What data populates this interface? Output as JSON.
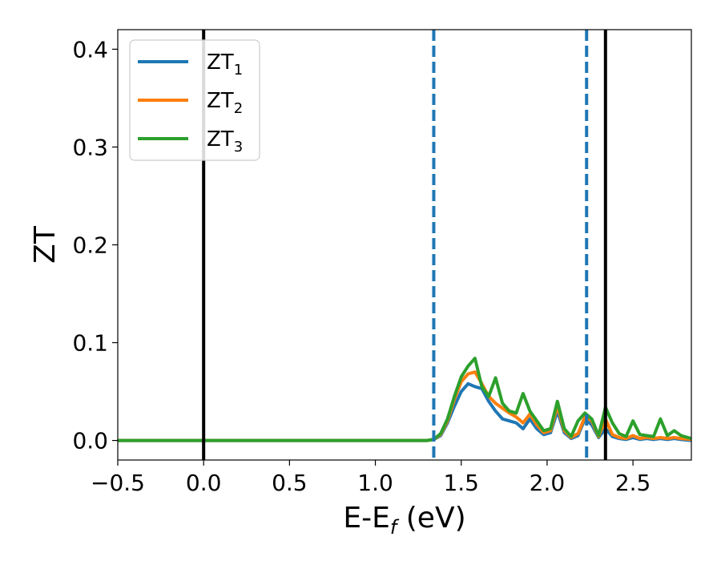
{
  "chart_data": {
    "type": "line",
    "title": "",
    "xlabel": {
      "base": "E-E",
      "sub": "f",
      "tail": " (eV)"
    },
    "ylabel": "ZT",
    "xlim": [
      -0.5,
      2.84
    ],
    "ylim": [
      -0.02,
      0.42
    ],
    "xticks": [
      -0.5,
      0.0,
      0.5,
      1.0,
      1.5,
      2.0,
      2.5
    ],
    "xtick_labels": [
      "−0.5",
      "0.0",
      "0.5",
      "1.0",
      "1.5",
      "2.0",
      "2.5"
    ],
    "yticks": [
      0.0,
      0.1,
      0.2,
      0.3,
      0.4
    ],
    "ytick_labels": [
      "0.0",
      "0.1",
      "0.2",
      "0.3",
      "0.4"
    ],
    "grid": false,
    "legend_position": "top-left",
    "vlines": [
      {
        "x": 0.0,
        "style": "solid",
        "color": "#000000"
      },
      {
        "x": 2.34,
        "style": "solid",
        "color": "#000000"
      },
      {
        "x": 1.34,
        "style": "dashed",
        "color": "#1f77b4"
      },
      {
        "x": 2.23,
        "style": "dashed",
        "color": "#1f77b4"
      }
    ],
    "series": [
      {
        "name": "ZT",
        "name_sub": "1",
        "color": "#1f77b4",
        "x": [
          -0.5,
          1.3,
          1.34,
          1.38,
          1.42,
          1.46,
          1.5,
          1.54,
          1.58,
          1.62,
          1.66,
          1.7,
          1.74,
          1.78,
          1.82,
          1.86,
          1.9,
          1.94,
          1.98,
          2.02,
          2.06,
          2.1,
          2.14,
          2.18,
          2.22,
          2.26,
          2.3,
          2.34,
          2.38,
          2.42,
          2.46,
          2.5,
          2.54,
          2.58,
          2.62,
          2.66,
          2.7,
          2.74,
          2.78,
          2.84
        ],
        "y": [
          0.0,
          0.0,
          0.001,
          0.005,
          0.018,
          0.035,
          0.05,
          0.058,
          0.055,
          0.053,
          0.04,
          0.03,
          0.022,
          0.02,
          0.018,
          0.012,
          0.022,
          0.012,
          0.006,
          0.008,
          0.03,
          0.008,
          0.002,
          0.005,
          0.022,
          0.016,
          0.003,
          0.012,
          0.004,
          0.002,
          0.001,
          0.003,
          0.001,
          0.002,
          0.001,
          0.002,
          0.001,
          0.002,
          0.001,
          0.0
        ]
      },
      {
        "name": "ZT",
        "name_sub": "2",
        "color": "#ff7f0e",
        "x": [
          -0.5,
          1.3,
          1.34,
          1.38,
          1.42,
          1.46,
          1.5,
          1.54,
          1.58,
          1.62,
          1.66,
          1.7,
          1.74,
          1.78,
          1.82,
          1.86,
          1.9,
          1.94,
          1.98,
          2.02,
          2.06,
          2.1,
          2.14,
          2.18,
          2.22,
          2.26,
          2.3,
          2.34,
          2.38,
          2.42,
          2.46,
          2.5,
          2.54,
          2.58,
          2.62,
          2.66,
          2.7,
          2.74,
          2.78,
          2.84
        ],
        "y": [
          0.0,
          0.0,
          0.001,
          0.006,
          0.02,
          0.042,
          0.06,
          0.068,
          0.07,
          0.058,
          0.045,
          0.038,
          0.033,
          0.028,
          0.024,
          0.018,
          0.027,
          0.016,
          0.008,
          0.01,
          0.035,
          0.01,
          0.003,
          0.007,
          0.024,
          0.02,
          0.004,
          0.022,
          0.006,
          0.003,
          0.002,
          0.005,
          0.002,
          0.003,
          0.002,
          0.003,
          0.002,
          0.003,
          0.002,
          0.001
        ]
      },
      {
        "name": "ZT",
        "name_sub": "3",
        "color": "#2ca02c",
        "x": [
          -0.5,
          1.3,
          1.34,
          1.38,
          1.42,
          1.46,
          1.5,
          1.54,
          1.58,
          1.62,
          1.66,
          1.7,
          1.74,
          1.78,
          1.82,
          1.86,
          1.9,
          1.94,
          1.98,
          2.02,
          2.06,
          2.1,
          2.14,
          2.18,
          2.22,
          2.26,
          2.3,
          2.34,
          2.38,
          2.42,
          2.46,
          2.5,
          2.54,
          2.58,
          2.62,
          2.66,
          2.7,
          2.74,
          2.78,
          2.84
        ],
        "y": [
          0.0,
          0.0,
          0.001,
          0.007,
          0.022,
          0.045,
          0.065,
          0.076,
          0.084,
          0.055,
          0.045,
          0.064,
          0.038,
          0.03,
          0.028,
          0.048,
          0.03,
          0.02,
          0.01,
          0.012,
          0.04,
          0.012,
          0.004,
          0.02,
          0.028,
          0.022,
          0.005,
          0.034,
          0.018,
          0.007,
          0.004,
          0.02,
          0.006,
          0.005,
          0.004,
          0.022,
          0.005,
          0.01,
          0.005,
          0.002
        ]
      }
    ]
  }
}
